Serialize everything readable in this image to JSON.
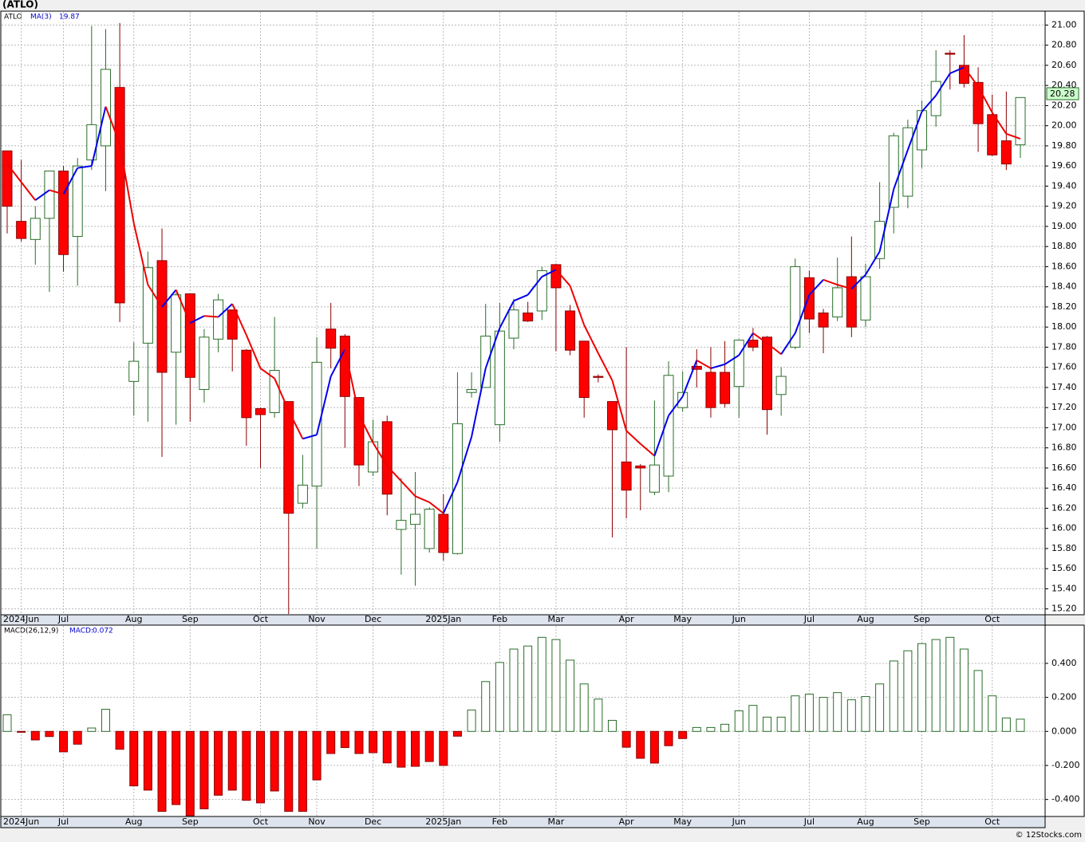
{
  "chart_data": [
    {
      "type": "candlestick",
      "title": "(ATLO)",
      "ticker": "ATLO",
      "ma_label": "MA(3)",
      "ma_value": 19.87,
      "last_price": 20.28,
      "categories": [
        null,
        "2024Jun",
        null,
        null,
        "Jul",
        null,
        null,
        null,
        null,
        "Aug",
        null,
        null,
        null,
        "Sep",
        null,
        null,
        null,
        null,
        "Oct",
        null,
        null,
        null,
        "Nov",
        null,
        null,
        null,
        "Dec",
        null,
        null,
        null,
        null,
        "2025Jan",
        null,
        null,
        null,
        "Feb",
        null,
        null,
        null,
        "Mar",
        null,
        null,
        null,
        null,
        "Apr",
        null,
        null,
        null,
        "May",
        null,
        null,
        null,
        "Jun",
        null,
        null,
        null,
        null,
        "Jul",
        null,
        null,
        null,
        "Aug",
        null,
        null,
        null,
        "Sep",
        null,
        null,
        null,
        null,
        "Oct",
        null,
        null
      ],
      "open": [
        19.75,
        19.05,
        18.87,
        19.08,
        19.55,
        18.9,
        19.66,
        19.8,
        20.38,
        17.46,
        17.84,
        18.66,
        17.75,
        18.33,
        17.38,
        17.88,
        18.17,
        17.77,
        17.19,
        17.15,
        17.26,
        16.25,
        16.42,
        17.98,
        17.91,
        17.3,
        16.56,
        17.06,
        15.99,
        16.04,
        15.8,
        16.14,
        15.75,
        17.35,
        17.4,
        17.03,
        17.89,
        18.14,
        18.16,
        18.62,
        18.16,
        17.86,
        17.51,
        17.26,
        16.66,
        16.62,
        16.36,
        16.52,
        17.2,
        17.61,
        17.55,
        17.55,
        17.41,
        17.87,
        17.9,
        17.33,
        17.8,
        18.49,
        18.14,
        18.1,
        18.5,
        18.07,
        18.68,
        19.19,
        19.3,
        19.76,
        20.1,
        20.72,
        20.6,
        20.43,
        20.11,
        19.85,
        19.81
      ],
      "high": [
        19.75,
        19.66,
        19.2,
        19.55,
        19.6,
        19.68,
        20.99,
        20.96,
        21.02,
        17.85,
        18.75,
        18.98,
        18.34,
        18.33,
        17.98,
        18.33,
        18.17,
        17.78,
        17.2,
        18.1,
        17.26,
        16.73,
        17.9,
        18.24,
        17.93,
        17.3,
        17.08,
        17.12,
        16.5,
        16.56,
        16.21,
        16.34,
        17.55,
        17.55,
        18.23,
        18.24,
        18.28,
        18.25,
        18.6,
        18.63,
        18.22,
        17.86,
        17.53,
        17.26,
        17.8,
        16.64,
        17.27,
        17.66,
        17.56,
        17.78,
        17.8,
        17.86,
        17.88,
        17.99,
        17.91,
        17.6,
        18.68,
        18.56,
        18.18,
        18.69,
        18.9,
        18.63,
        19.44,
        19.93,
        20.06,
        20.25,
        20.75,
        20.75,
        20.9,
        20.58,
        20.31,
        20.34,
        20.28
      ],
      "low": [
        18.93,
        18.85,
        18.62,
        18.35,
        18.55,
        18.41,
        19.56,
        19.35,
        18.05,
        17.12,
        17.06,
        16.71,
        17.03,
        17.06,
        17.25,
        17.75,
        17.56,
        16.82,
        16.6,
        17.1,
        15.15,
        16.2,
        15.8,
        17.59,
        16.8,
        16.42,
        16.52,
        16.13,
        15.54,
        15.43,
        15.76,
        15.68,
        15.74,
        17.3,
        17.4,
        16.86,
        17.78,
        18.05,
        18.07,
        17.76,
        17.72,
        17.1,
        17.45,
        15.91,
        16.1,
        16.18,
        16.33,
        16.36,
        17.16,
        17.4,
        17.1,
        17.2,
        17.1,
        17.76,
        16.93,
        17.12,
        17.78,
        17.94,
        17.74,
        18.06,
        17.9,
        18.0,
        18.58,
        18.93,
        19.18,
        19.58,
        19.99,
        20.36,
        20.38,
        19.74,
        19.7,
        19.56,
        19.68
      ],
      "close": [
        19.2,
        18.88,
        19.08,
        19.55,
        18.72,
        19.6,
        20.01,
        20.56,
        18.24,
        17.66,
        18.59,
        17.55,
        18.32,
        17.5,
        17.9,
        18.27,
        17.88,
        17.1,
        17.13,
        17.57,
        16.15,
        16.43,
        17.65,
        17.79,
        17.31,
        16.63,
        16.86,
        16.34,
        16.08,
        16.14,
        16.19,
        15.76,
        17.04,
        17.38,
        17.91,
        17.96,
        18.17,
        18.06,
        18.56,
        18.39,
        17.77,
        17.3,
        17.5,
        16.98,
        16.38,
        16.6,
        16.63,
        17.52,
        17.35,
        17.58,
        17.2,
        17.24,
        17.87,
        17.8,
        17.18,
        17.51,
        18.6,
        18.08,
        18.0,
        18.39,
        18.0,
        18.5,
        19.05,
        19.9,
        19.98,
        20.15,
        20.44,
        20.71,
        20.42,
        20.02,
        19.71,
        19.62,
        20.28
      ],
      "ma": [
        19.62,
        19.44,
        19.26,
        19.36,
        19.32,
        19.58,
        19.6,
        20.19,
        19.82,
        19.03,
        18.42,
        18.2,
        18.37,
        18.04,
        18.11,
        18.1,
        18.23,
        17.92,
        17.59,
        17.49,
        17.17,
        16.89,
        16.93,
        17.51,
        17.78,
        17.13,
        16.85,
        16.62,
        16.47,
        16.32,
        16.26,
        16.15,
        16.46,
        16.91,
        17.59,
        17.99,
        18.26,
        18.32,
        18.5,
        18.57,
        18.41,
        18.02,
        17.74,
        17.47,
        16.97,
        16.84,
        16.72,
        17.12,
        17.31,
        17.67,
        17.59,
        17.63,
        17.72,
        17.94,
        17.84,
        17.73,
        17.94,
        18.32,
        18.47,
        18.42,
        18.38,
        18.52,
        18.75,
        19.37,
        19.76,
        20.14,
        20.3,
        20.52,
        20.58,
        20.39,
        20.13,
        19.92,
        19.87
      ],
      "ylim": [
        15.15,
        21.13
      ],
      "yticks": [
        {
          "value": 15.2,
          "label": "15.20"
        },
        {
          "value": 15.4,
          "label": "15.40"
        },
        {
          "value": 15.6,
          "label": "15.60"
        },
        {
          "value": 15.8,
          "label": "15.80"
        },
        {
          "value": 16.0,
          "label": "16.00"
        },
        {
          "value": 16.2,
          "label": "16.20"
        },
        {
          "value": 16.4,
          "label": "16.40"
        },
        {
          "value": 16.6,
          "label": "16.60"
        },
        {
          "value": 16.8,
          "label": "16.80"
        },
        {
          "value": 17.0,
          "label": "17.00"
        },
        {
          "value": 17.2,
          "label": "17.20"
        },
        {
          "value": 17.4,
          "label": "17.40"
        },
        {
          "value": 17.6,
          "label": "17.60"
        },
        {
          "value": 17.8,
          "label": "17.80"
        },
        {
          "value": 18.0,
          "label": "18.00"
        },
        {
          "value": 18.2,
          "label": "18.20"
        },
        {
          "value": 18.4,
          "label": "18.40"
        },
        {
          "value": 18.6,
          "label": "18.60"
        },
        {
          "value": 18.8,
          "label": "18.80"
        },
        {
          "value": 19.0,
          "label": "19.00"
        },
        {
          "value": 19.2,
          "label": "19.20"
        },
        {
          "value": 19.4,
          "label": "19.40"
        },
        {
          "value": 19.6,
          "label": "19.60"
        },
        {
          "value": 19.8,
          "label": "19.80"
        },
        {
          "value": 20.0,
          "label": "20.00"
        },
        {
          "value": 20.2,
          "label": "20.20"
        },
        {
          "value": 20.4,
          "label": "20.40"
        },
        {
          "value": 20.6,
          "label": "20.60"
        },
        {
          "value": 20.8,
          "label": "20.80"
        },
        {
          "value": 21.0,
          "label": "21.00"
        }
      ],
      "grid": true,
      "up_color": "#2a6e2a",
      "down_color": "#ff0000",
      "ma_up_color": "#0000ee",
      "ma_down_color": "#ee0000"
    },
    {
      "type": "histogram",
      "label": "MACD(26,12,9)",
      "value_prefix": "MACD:",
      "value": 0.072,
      "values": [
        0.098,
        -0.005,
        -0.05,
        -0.03,
        -0.12,
        -0.075,
        0.02,
        0.13,
        -0.105,
        -0.32,
        -0.345,
        -0.47,
        -0.43,
        -0.495,
        -0.455,
        -0.375,
        -0.345,
        -0.405,
        -0.42,
        -0.35,
        -0.47,
        -0.47,
        -0.285,
        -0.13,
        -0.095,
        -0.13,
        -0.125,
        -0.185,
        -0.21,
        -0.205,
        -0.177,
        -0.2,
        -0.028,
        0.126,
        0.293,
        0.405,
        0.484,
        0.502,
        0.553,
        0.54,
        0.419,
        0.279,
        0.19,
        0.065,
        -0.093,
        -0.158,
        -0.186,
        -0.084,
        -0.042,
        0.023,
        0.023,
        0.042,
        0.121,
        0.153,
        0.084,
        0.084,
        0.209,
        0.219,
        0.2,
        0.228,
        0.186,
        0.205,
        0.279,
        0.414,
        0.474,
        0.516,
        0.54,
        0.553,
        0.484,
        0.358,
        0.209,
        0.079,
        0.072
      ],
      "ylim": [
        -0.5,
        0.62
      ],
      "yticks": [
        {
          "value": -0.4,
          "label": "-0.400"
        },
        {
          "value": -0.2,
          "label": "-0.200"
        },
        {
          "value": 0,
          "label": "0.000"
        },
        {
          "value": 0.2,
          "label": "0.200"
        },
        {
          "value": 0.4,
          "label": "0.400"
        }
      ],
      "grid": true,
      "up_color": "#2a6e2a",
      "down_color": "#ff0000"
    }
  ],
  "footer": "© 12Stocks.com"
}
